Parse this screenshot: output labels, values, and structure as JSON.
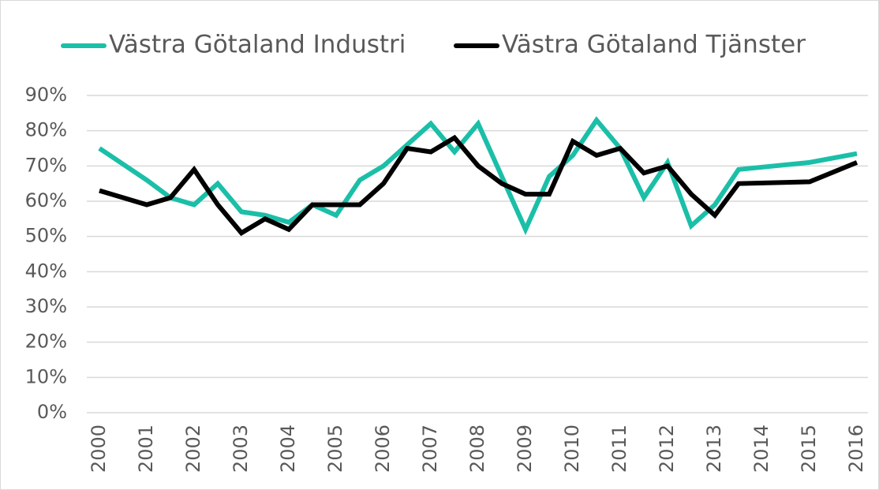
{
  "chart_data": {
    "type": "line",
    "x": [
      2000,
      2001,
      2001.5,
      2002,
      2002.5,
      2003,
      2003.5,
      2004,
      2004.5,
      2005,
      2005.5,
      2006,
      2006.5,
      2007,
      2007.5,
      2008,
      2008.5,
      2009,
      2009.5,
      2010,
      2010.5,
      2011,
      2011.5,
      2012,
      2012.5,
      2013,
      2013.5,
      2015,
      2016
    ],
    "series": [
      {
        "name": "Västra Götaland Industri",
        "color": "#1bbfa8",
        "values": [
          75,
          66,
          61,
          59,
          65,
          57,
          56,
          54,
          59,
          56,
          66,
          70,
          76,
          82,
          74,
          82,
          67,
          52,
          67,
          73,
          83,
          75,
          61,
          71,
          53,
          59,
          69,
          71,
          73.5
        ]
      },
      {
        "name": "Västra Götaland Tjänster",
        "color": "#000000",
        "values": [
          63,
          59,
          61,
          69,
          59,
          51,
          55,
          52,
          59,
          59,
          59,
          65,
          75,
          74,
          78,
          70,
          65,
          62,
          62,
          77,
          73,
          75,
          68,
          70,
          62,
          56,
          65,
          65.5,
          71
        ]
      }
    ],
    "xlim": [
      2000,
      2016
    ],
    "xticks": [
      2000,
      2001,
      2002,
      2003,
      2004,
      2005,
      2006,
      2007,
      2008,
      2009,
      2010,
      2011,
      2012,
      2013,
      2014,
      2015,
      2016
    ],
    "ylim": [
      0,
      90
    ],
    "yticks": [
      {
        "value": 0,
        "label": "0%"
      },
      {
        "value": 10,
        "label": "10%"
      },
      {
        "value": 20,
        "label": "20%"
      },
      {
        "value": 30,
        "label": "30%"
      },
      {
        "value": 40,
        "label": "40%"
      },
      {
        "value": 50,
        "label": "50%"
      },
      {
        "value": 60,
        "label": "60%"
      },
      {
        "value": 70,
        "label": "70%"
      },
      {
        "value": 80,
        "label": "80%"
      },
      {
        "value": 90,
        "label": "90%"
      }
    ],
    "grid": true,
    "legend": "top"
  }
}
